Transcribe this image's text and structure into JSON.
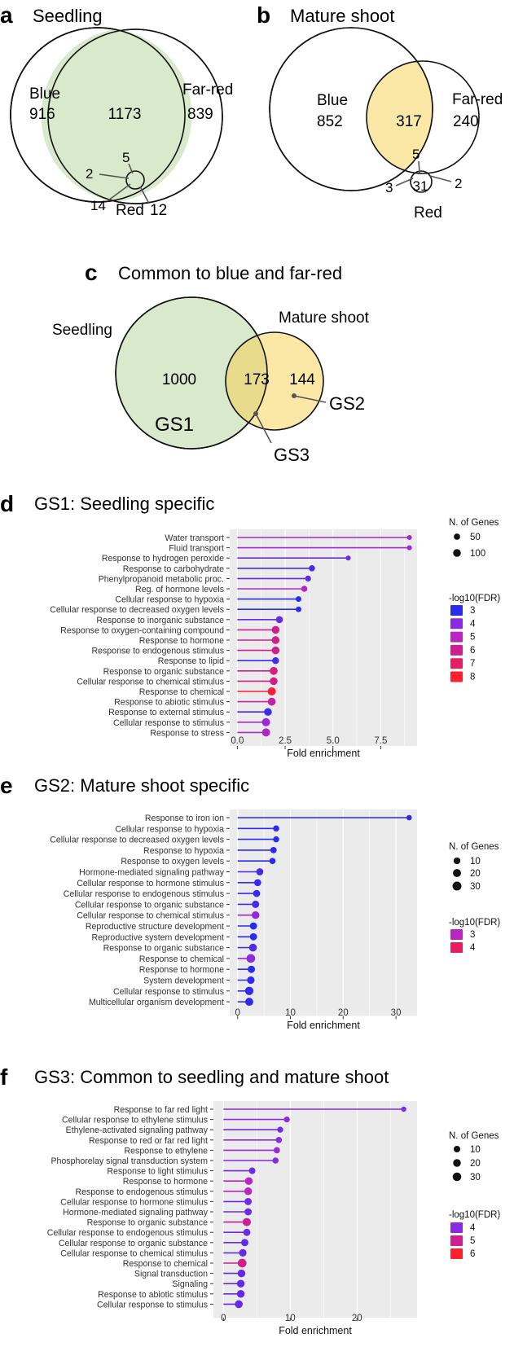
{
  "venn": {
    "a": {
      "panel_label": "a",
      "title": "Seedling",
      "blue_label": "Blue",
      "blue_only": "916",
      "farred_label": "Far-red",
      "farred_only": "839",
      "blue_farred": "1173",
      "all_three": "5",
      "blue_red": "2",
      "red_only": "14",
      "red_label": "Red",
      "farred_red": "12"
    },
    "b": {
      "panel_label": "b",
      "title": "Mature shoot",
      "blue_label": "Blue",
      "blue_only": "852",
      "farred_label": "Far-red",
      "farred_only": "240",
      "blue_farred": "317",
      "all_three": "5",
      "blue_red": "3",
      "red_only": "31",
      "farred_red": "2",
      "red_label": "Red"
    },
    "c": {
      "panel_label": "c",
      "title": "Common to blue and far-red",
      "seedling_label": "Seedling",
      "mature_label": "Mature shoot",
      "seedling_only": "1000",
      "overlap": "173",
      "mature_only": "144",
      "gs1": "GS1",
      "gs2": "GS2",
      "gs3": "GS3"
    }
  },
  "colors": {
    "green_fill": "#d9e9cc",
    "yellow_fill": "#fce8a6",
    "overlap_fill": "#e8dc8c",
    "panel_bg": "#ebebeb",
    "grid": "#ffffff",
    "fdr3": "#2b2bef",
    "fdr4": "#8a2be2",
    "fdr5": "#b726c0",
    "fdr6": "#d01f8a",
    "fdr7": "#e61e60",
    "fdr8": "#ff1f2d"
  },
  "chart_data": [
    {
      "type": "lollipop",
      "panel_label": "d",
      "title": "GS1: Seedling specific",
      "xlabel": "Fold enrichment",
      "xlim": [
        -0.4,
        9.4
      ],
      "xticks": [
        0,
        2.5,
        5,
        7.5
      ],
      "xtick_labels": [
        "0.0",
        "2.5",
        "5.0",
        "7.5"
      ],
      "size_legend": {
        "title": "N. of Genes",
        "labels": [
          "50",
          "100"
        ]
      },
      "color_legend": {
        "title": "-log10(FDR)",
        "labels": [
          "3",
          "4",
          "5",
          "6",
          "7",
          "8"
        ],
        "colors": [
          "#2b2bef",
          "#8a2be2",
          "#b726c0",
          "#d01f8a",
          "#e61e60",
          "#ff1f2d"
        ]
      },
      "terms": [
        {
          "label": "Water transport",
          "value": 9.0,
          "fdr": 4.5,
          "genes": 25
        },
        {
          "label": "Fluid transport",
          "value": 9.0,
          "fdr": 4.5,
          "genes": 25
        },
        {
          "label": "Response to hydrogen peroxide",
          "value": 5.8,
          "fdr": 3.7,
          "genes": 25
        },
        {
          "label": "Response to carbohydrate",
          "value": 3.9,
          "fdr": 3.3,
          "genes": 45
        },
        {
          "label": "Phenylpropanoid metabolic proc.",
          "value": 3.7,
          "fdr": 3.5,
          "genes": 40
        },
        {
          "label": "Reg. of hormone levels",
          "value": 3.5,
          "fdr": 5.0,
          "genes": 45
        },
        {
          "label": "Cellular response to hypoxia",
          "value": 3.2,
          "fdr": 3.0,
          "genes": 35
        },
        {
          "label": "Cellular response to decreased oxygen levels",
          "value": 3.2,
          "fdr": 3.0,
          "genes": 35
        },
        {
          "label": "Response to inorganic substance",
          "value": 2.2,
          "fdr": 3.6,
          "genes": 70
        },
        {
          "label": "Response to oxygen-containing compound",
          "value": 2.0,
          "fdr": 6.0,
          "genes": 105
        },
        {
          "label": "Response to hormone",
          "value": 2.0,
          "fdr": 6.0,
          "genes": 100
        },
        {
          "label": "Response to endogenous stimulus",
          "value": 2.0,
          "fdr": 6.0,
          "genes": 100
        },
        {
          "label": "Response to lipid",
          "value": 2.0,
          "fdr": 3.2,
          "genes": 65
        },
        {
          "label": "Response to organic substance",
          "value": 1.9,
          "fdr": 6.2,
          "genes": 110
        },
        {
          "label": "Cellular response to chemical stimulus",
          "value": 1.9,
          "fdr": 6.0,
          "genes": 100
        },
        {
          "label": "Response to chemical",
          "value": 1.8,
          "fdr": 7.8,
          "genes": 150
        },
        {
          "label": "Response to abiotic stimulus",
          "value": 1.8,
          "fdr": 5.5,
          "genes": 110
        },
        {
          "label": "Response to external stimulus",
          "value": 1.6,
          "fdr": 3.2,
          "genes": 100
        },
        {
          "label": "Cellular response to stimulus",
          "value": 1.5,
          "fdr": 4.5,
          "genes": 120
        },
        {
          "label": "Response to stress",
          "value": 1.5,
          "fdr": 4.8,
          "genes": 140
        }
      ]
    },
    {
      "type": "lollipop",
      "panel_label": "e",
      "title": "GS2: Mature shoot specific",
      "xlabel": "Fold enrichment",
      "xlim": [
        -1.5,
        34
      ],
      "xticks": [
        0,
        10,
        20,
        30
      ],
      "xtick_labels": [
        "0",
        "10",
        "20",
        "30"
      ],
      "size_legend": {
        "title": "N. of Genes",
        "labels": [
          "10",
          "20",
          "30"
        ]
      },
      "color_legend": {
        "title": "-log10(FDR)",
        "labels": [
          "3",
          "4"
        ],
        "colors": [
          "#b726c0",
          "#e61e60"
        ]
      },
      "terms": [
        {
          "label": "Response to iron ion",
          "value": 32.5,
          "fdr": 2.8,
          "genes": 3
        },
        {
          "label": "Cellular response to hypoxia",
          "value": 7.3,
          "fdr": 3.0,
          "genes": 6
        },
        {
          "label": "Cellular response to decreased oxygen levels",
          "value": 7.3,
          "fdr": 3.0,
          "genes": 6
        },
        {
          "label": "Response to hypoxia",
          "value": 6.8,
          "fdr": 3.0,
          "genes": 7
        },
        {
          "label": "Response to oxygen levels",
          "value": 6.6,
          "fdr": 3.0,
          "genes": 7
        },
        {
          "label": "Hormone-mediated signaling pathway",
          "value": 4.2,
          "fdr": 3.3,
          "genes": 12
        },
        {
          "label": "Cellular response to hormone stimulus",
          "value": 3.8,
          "fdr": 3.1,
          "genes": 12
        },
        {
          "label": "Cellular response to endogenous stimulus",
          "value": 3.6,
          "fdr": 3.1,
          "genes": 12
        },
        {
          "label": "Cellular response to organic substance",
          "value": 3.4,
          "fdr": 3.3,
          "genes": 14
        },
        {
          "label": "Cellular response to chemical stimulus",
          "value": 3.4,
          "fdr": 4.2,
          "genes": 17
        },
        {
          "label": "Reproductive structure development",
          "value": 3.0,
          "fdr": 2.9,
          "genes": 13
        },
        {
          "label": "Reproductive system development",
          "value": 3.0,
          "fdr": 2.9,
          "genes": 13
        },
        {
          "label": "Response to organic substance",
          "value": 2.9,
          "fdr": 3.4,
          "genes": 18
        },
        {
          "label": "Response to chemical",
          "value": 2.5,
          "fdr": 4.1,
          "genes": 27
        },
        {
          "label": "Response to hormone",
          "value": 2.6,
          "fdr": 2.6,
          "genes": 14
        },
        {
          "label": "System development",
          "value": 2.5,
          "fdr": 2.9,
          "genes": 15
        },
        {
          "label": "Cellular response to stimulus",
          "value": 2.2,
          "fdr": 3.1,
          "genes": 24
        },
        {
          "label": "Multicellular organism development",
          "value": 2.2,
          "fdr": 2.5,
          "genes": 20
        }
      ]
    },
    {
      "type": "lollipop",
      "panel_label": "f",
      "title": "GS3: Common to seedling and mature shoot",
      "xlabel": "Fold enrichment",
      "xlim": [
        -1.5,
        29
      ],
      "xticks": [
        0,
        10,
        20
      ],
      "xtick_labels": [
        "0",
        "10",
        "20"
      ],
      "size_legend": {
        "title": "N. of Genes",
        "labels": [
          "10",
          "20",
          "30"
        ]
      },
      "color_legend": {
        "title": "-log10(FDR)",
        "labels": [
          "4",
          "5",
          "6"
        ],
        "colors": [
          "#8a2be2",
          "#d01f8a",
          "#ff1f2d"
        ]
      },
      "terms": [
        {
          "label": "Response to far red light",
          "value": 27.0,
          "fdr": 3.9,
          "genes": 3
        },
        {
          "label": "Cellular response to ethylene stimulus",
          "value": 9.5,
          "fdr": 4.1,
          "genes": 6
        },
        {
          "label": "Ethylene-activated signaling pathway",
          "value": 8.5,
          "fdr": 3.7,
          "genes": 6
        },
        {
          "label": "Response to red or far red light",
          "value": 8.3,
          "fdr": 4.0,
          "genes": 7
        },
        {
          "label": "Response to ethylene",
          "value": 8.0,
          "fdr": 4.4,
          "genes": 8
        },
        {
          "label": "Phosphorelay signal transduction system",
          "value": 7.8,
          "fdr": 3.9,
          "genes": 7
        },
        {
          "label": "Response to light stimulus",
          "value": 4.3,
          "fdr": 3.7,
          "genes": 10
        },
        {
          "label": "Response to hormone",
          "value": 3.8,
          "fdr": 5.0,
          "genes": 20
        },
        {
          "label": "Response to endogenous stimulus",
          "value": 3.7,
          "fdr": 5.0,
          "genes": 20
        },
        {
          "label": "Cellular response to hormone stimulus",
          "value": 3.7,
          "fdr": 3.7,
          "genes": 15
        },
        {
          "label": "Hormone-mediated signaling pathway",
          "value": 3.7,
          "fdr": 3.7,
          "genes": 15
        },
        {
          "label": "Response to organic substance",
          "value": 3.5,
          "fdr": 5.8,
          "genes": 25
        },
        {
          "label": "Cellular response to endogenous stimulus",
          "value": 3.5,
          "fdr": 3.7,
          "genes": 15
        },
        {
          "label": "Cellular response to organic substance",
          "value": 3.2,
          "fdr": 3.6,
          "genes": 16
        },
        {
          "label": "Cellular response to chemical stimulus",
          "value": 2.9,
          "fdr": 3.6,
          "genes": 18
        },
        {
          "label": "Response to chemical",
          "value": 2.8,
          "fdr": 6.0,
          "genes": 32
        },
        {
          "label": "Signal transduction",
          "value": 2.7,
          "fdr": 3.6,
          "genes": 20
        },
        {
          "label": "Signaling",
          "value": 2.6,
          "fdr": 3.6,
          "genes": 20
        },
        {
          "label": "Response to abiotic stimulus",
          "value": 2.6,
          "fdr": 3.6,
          "genes": 20
        },
        {
          "label": "Cellular response to stimulus",
          "value": 2.3,
          "fdr": 3.6,
          "genes": 22
        }
      ]
    }
  ]
}
